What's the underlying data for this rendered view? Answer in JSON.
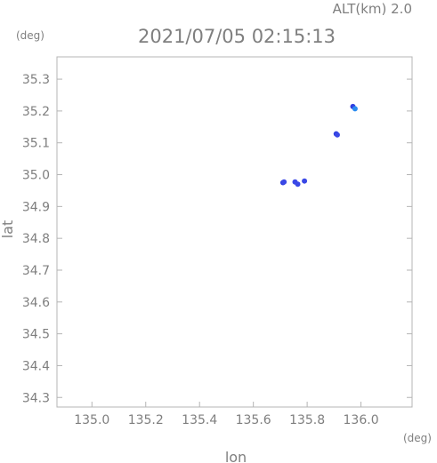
{
  "header": {
    "alt_label": "ALT(km) 2.0",
    "timestamp": "2021/07/05 02:15:13"
  },
  "chart_data": {
    "type": "scatter",
    "title": "2021/07/05 02:15:13",
    "xlabel": "lon",
    "ylabel": "lat",
    "x_unit": "(deg)",
    "y_unit": "(deg)",
    "xlim": [
      134.87,
      136.19
    ],
    "ylim": [
      34.27,
      35.37
    ],
    "x_ticks": [
      "135.0",
      "135.2",
      "135.4",
      "135.6",
      "135.8",
      "136.0"
    ],
    "y_ticks": [
      "34.3",
      "34.4",
      "34.5",
      "34.6",
      "34.7",
      "34.8",
      "34.9",
      "35.0",
      "35.1",
      "35.2",
      "35.3"
    ],
    "grid": false,
    "colors": {
      "axis": "#b4b4b4",
      "text": "#7f7f7f",
      "point_primary": "#2f3fe0",
      "point_secondary": "#2a8cf0"
    },
    "points": [
      {
        "x": 135.71,
        "y": 34.975,
        "color": "#2f3fe0"
      },
      {
        "x": 135.714,
        "y": 34.977,
        "color": "#3a48e6"
      },
      {
        "x": 135.755,
        "y": 34.977,
        "color": "#3a48e6"
      },
      {
        "x": 135.765,
        "y": 34.97,
        "color": "#3a48e6"
      },
      {
        "x": 135.79,
        "y": 34.98,
        "color": "#3a48e6"
      },
      {
        "x": 135.908,
        "y": 35.128,
        "color": "#2f3fe0"
      },
      {
        "x": 135.912,
        "y": 35.125,
        "color": "#3a48e6"
      },
      {
        "x": 135.97,
        "y": 35.214,
        "color": "#2f3fe0"
      },
      {
        "x": 135.978,
        "y": 35.207,
        "color": "#2a8cf0"
      }
    ]
  }
}
